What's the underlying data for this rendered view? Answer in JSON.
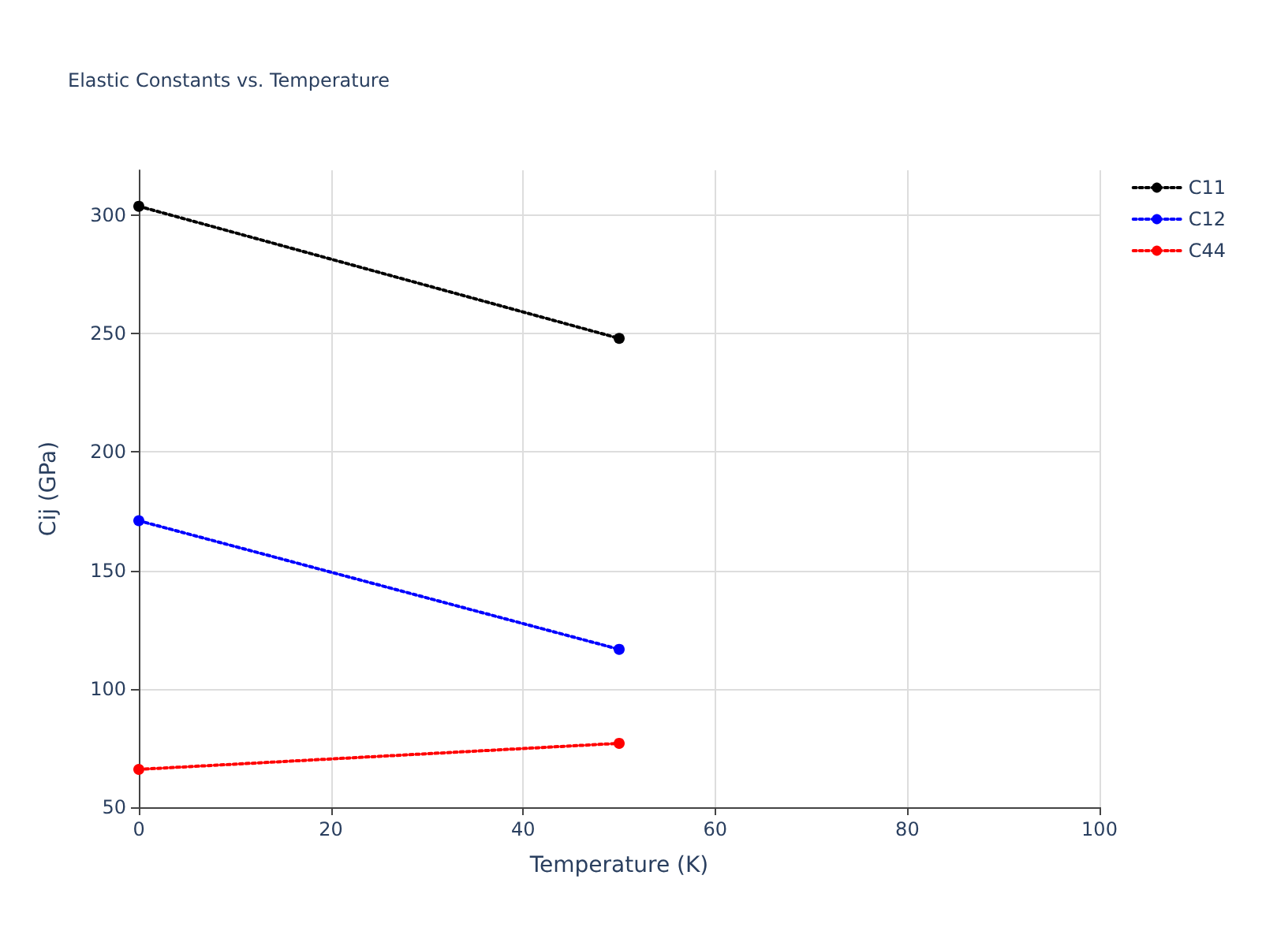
{
  "chart_data": {
    "type": "line",
    "title": "Elastic Constants vs. Temperature",
    "xlabel": "Temperature (K)",
    "ylabel": "Cij (GPa)",
    "x": [
      0,
      50
    ],
    "series": [
      {
        "name": "C11",
        "color": "#000000",
        "values": [
          303.8,
          248
        ]
      },
      {
        "name": "C12",
        "color": "#0000ff",
        "values": [
          171,
          116.7
        ]
      },
      {
        "name": "C44",
        "color": "#ff0000",
        "values": [
          66,
          77
        ]
      }
    ],
    "xlim": [
      0,
      100
    ],
    "xticks": [
      0,
      20,
      40,
      60,
      80,
      100
    ],
    "ylim": [
      50,
      319
    ],
    "yticks": [
      50,
      100,
      150,
      200,
      250,
      300
    ],
    "grid": true,
    "legend": "top right",
    "marker": "circle",
    "line_style": "dotted"
  }
}
